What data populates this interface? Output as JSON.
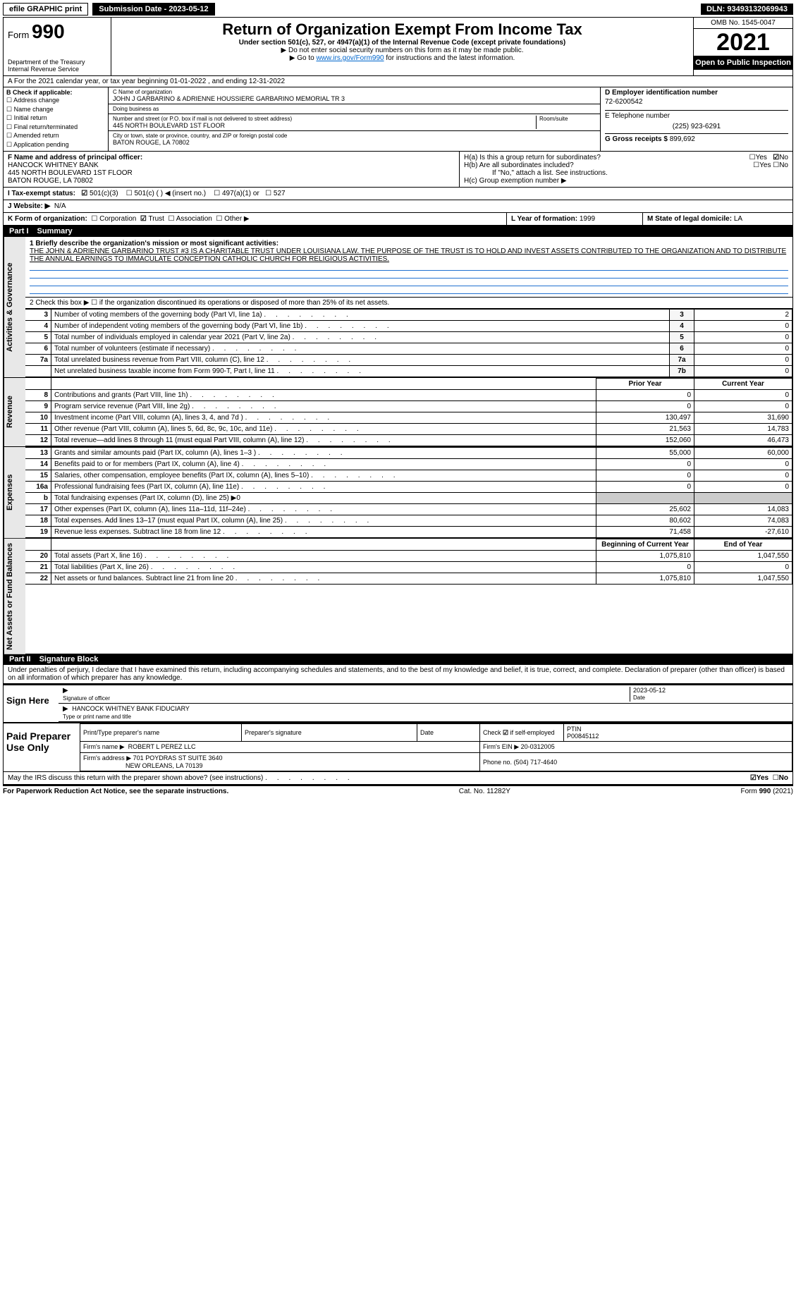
{
  "topbar": {
    "efile": "efile GRAPHIC print",
    "submission_label": "Submission Date - 2023-05-12",
    "dln": "DLN: 93493132069943"
  },
  "header": {
    "form_prefix": "Form",
    "form_no": "990",
    "dept": "Department of the Treasury",
    "irs": "Internal Revenue Service",
    "title": "Return of Organization Exempt From Income Tax",
    "sub1": "Under section 501(c), 527, or 4947(a)(1) of the Internal Revenue Code (except private foundations)",
    "sub2": "▶ Do not enter social security numbers on this form as it may be made public.",
    "sub3_pre": "▶ Go to ",
    "sub3_link": "www.irs.gov/Form990",
    "sub3_post": " for instructions and the latest information.",
    "omb": "OMB No. 1545-0047",
    "year": "2021",
    "open": "Open to Public Inspection"
  },
  "rowA": "A For the 2021 calendar year, or tax year beginning 01-01-2022     , and ending 12-31-2022",
  "colB": {
    "hdr": "B Check if applicable:",
    "items": [
      "Address change",
      "Name change",
      "Initial return",
      "Final return/terminated",
      "Amended return",
      "Application pending"
    ]
  },
  "colC": {
    "name_lbl": "C Name of organization",
    "name": "JOHN J GARBARINO & ADRIENNE HOUSSIERE GARBARINO MEMORIAL TR 3",
    "dba_lbl": "Doing business as",
    "addr_lbl": "Number and street (or P.O. box if mail is not delivered to street address)",
    "room_lbl": "Room/suite",
    "addr": "445 NORTH BOULEVARD 1ST FLOOR",
    "city_lbl": "City or town, state or province, country, and ZIP or foreign postal code",
    "city": "BATON ROUGE, LA  70802"
  },
  "colD": {
    "ein_lbl": "D Employer identification number",
    "ein": "72-6200542",
    "tel_lbl": "E Telephone number",
    "tel": "(225) 923-6291",
    "gross_lbl": "G Gross receipts $",
    "gross": "899,692"
  },
  "rowF": {
    "lbl": "F  Name and address of principal officer:",
    "l1": "HANCOCK WHITNEY BANK",
    "l2": "445 NORTH BOULEVARD 1ST FLOOR",
    "l3": "BATON ROUGE, LA  70802"
  },
  "rowH": {
    "a": "H(a)  Is this a group return for subordinates?",
    "a_yes": "Yes",
    "a_no": "No",
    "b": "H(b)  Are all subordinates included?",
    "b_note": "If \"No,\" attach a list. See instructions.",
    "c": "H(c)  Group exemption number ▶"
  },
  "rowI": {
    "lbl": "I     Tax-exempt status:",
    "o1": "501(c)(3)",
    "o2": "501(c) (   ) ◀ (insert no.)",
    "o3": "497(a)(1) or",
    "o4": "527"
  },
  "rowJ": {
    "lbl": "J    Website: ▶",
    "val": "N/A"
  },
  "rowK": {
    "lbl": "K Form of organization:",
    "o": [
      "Corporation",
      "Trust",
      "Association",
      "Other ▶"
    ]
  },
  "rowL": {
    "lbl": "L Year of formation:",
    "val": "1999"
  },
  "rowM": {
    "lbl": "M State of legal domicile:",
    "val": "LA"
  },
  "part1": {
    "no": "Part I",
    "title": "Summary",
    "q1_lbl": "1  Briefly describe the organization's mission or most significant activities:",
    "q1_txt": "THE JOHN & ADRIENNE GARBARINO TRUST #3 IS A CHARITABLE TRUST UNDER LOUISIANA LAW. THE PURPOSE OF THE TRUST IS TO HOLD AND INVEST ASSETS CONTRIBUTED TO THE ORGANIZATION AND TO DISTRIBUTE THE ANNUAL EARNINGS TO IMMACULATE CONCEPTION CATHOLIC CHURCH FOR RELIGIOUS ACTIVITIES.",
    "q2": "2   Check this box ▶ ☐  if the organization discontinued its operations or disposed of more than 25% of its net assets.",
    "gov_rows": [
      {
        "n": "3",
        "d": "Number of voting members of the governing body (Part VI, line 1a)",
        "box": "3",
        "v": "2"
      },
      {
        "n": "4",
        "d": "Number of independent voting members of the governing body (Part VI, line 1b)",
        "box": "4",
        "v": "0"
      },
      {
        "n": "5",
        "d": "Total number of individuals employed in calendar year 2021 (Part V, line 2a)",
        "box": "5",
        "v": "0"
      },
      {
        "n": "6",
        "d": "Total number of volunteers (estimate if necessary)",
        "box": "6",
        "v": "0"
      },
      {
        "n": "7a",
        "d": "Total unrelated business revenue from Part VIII, column (C), line 12",
        "box": "7a",
        "v": "0"
      },
      {
        "n": "",
        "d": "Net unrelated business taxable income from Form 990-T, Part I, line 11",
        "box": "7b",
        "v": "0"
      }
    ],
    "col_prior": "Prior Year",
    "col_curr": "Current Year",
    "rev_rows": [
      {
        "n": "8",
        "d": "Contributions and grants (Part VIII, line 1h)",
        "p": "0",
        "c": "0"
      },
      {
        "n": "9",
        "d": "Program service revenue (Part VIII, line 2g)",
        "p": "0",
        "c": "0"
      },
      {
        "n": "10",
        "d": "Investment income (Part VIII, column (A), lines 3, 4, and 7d )",
        "p": "130,497",
        "c": "31,690"
      },
      {
        "n": "11",
        "d": "Other revenue (Part VIII, column (A), lines 5, 6d, 8c, 9c, 10c, and 11e)",
        "p": "21,563",
        "c": "14,783"
      },
      {
        "n": "12",
        "d": "Total revenue—add lines 8 through 11 (must equal Part VIII, column (A), line 12)",
        "p": "152,060",
        "c": "46,473"
      }
    ],
    "exp_rows": [
      {
        "n": "13",
        "d": "Grants and similar amounts paid (Part IX, column (A), lines 1–3 )",
        "p": "55,000",
        "c": "60,000"
      },
      {
        "n": "14",
        "d": "Benefits paid to or for members (Part IX, column (A), line 4)",
        "p": "0",
        "c": "0"
      },
      {
        "n": "15",
        "d": "Salaries, other compensation, employee benefits (Part IX, column (A), lines 5–10)",
        "p": "0",
        "c": "0"
      },
      {
        "n": "16a",
        "d": "Professional fundraising fees (Part IX, column (A), line 11e)",
        "p": "0",
        "c": "0"
      },
      {
        "n": "b",
        "d": "Total fundraising expenses (Part IX, column (D), line 25) ▶0",
        "p": "",
        "c": ""
      },
      {
        "n": "17",
        "d": "Other expenses (Part IX, column (A), lines 11a–11d, 11f–24e)",
        "p": "25,602",
        "c": "14,083"
      },
      {
        "n": "18",
        "d": "Total expenses. Add lines 13–17 (must equal Part IX, column (A), line 25)",
        "p": "80,602",
        "c": "74,083"
      },
      {
        "n": "19",
        "d": "Revenue less expenses. Subtract line 18 from line 12",
        "p": "71,458",
        "c": "-27,610"
      }
    ],
    "col_boy": "Beginning of Current Year",
    "col_eoy": "End of Year",
    "net_rows": [
      {
        "n": "20",
        "d": "Total assets (Part X, line 16)",
        "p": "1,075,810",
        "c": "1,047,550"
      },
      {
        "n": "21",
        "d": "Total liabilities (Part X, line 26)",
        "p": "0",
        "c": "0"
      },
      {
        "n": "22",
        "d": "Net assets or fund balances. Subtract line 21 from line 20",
        "p": "1,075,810",
        "c": "1,047,550"
      }
    ],
    "tabs": [
      "Activities & Governance",
      "Revenue",
      "Expenses",
      "Net Assets or Fund Balances"
    ]
  },
  "part2": {
    "no": "Part II",
    "title": "Signature Block",
    "decl": "Under penalties of perjury, I declare that I have examined this return, including accompanying schedules and statements, and to the best of my knowledge and belief, it is true, correct, and complete. Declaration of preparer (other than officer) is based on all information of which preparer has any knowledge."
  },
  "sign": {
    "lbl": "Sign Here",
    "sig_lbl": "Signature of officer",
    "date": "2023-05-12",
    "date_lbl": "Date",
    "name": "HANCOCK WHITNEY BANK  FIDUCIARY",
    "name_lbl": "Type or print name and title"
  },
  "prep": {
    "lbl": "Paid Preparer Use Only",
    "h1": "Print/Type preparer's name",
    "h2": "Preparer's signature",
    "h3": "Date",
    "h4_pre": "Check",
    "h4_post": "if self-employed",
    "ptin_lbl": "PTIN",
    "ptin": "P00845112",
    "firm_lbl": "Firm's name    ▶",
    "firm": "ROBERT L PEREZ LLC",
    "ein_lbl": "Firm's EIN ▶",
    "ein": "20-0312005",
    "addr_lbl": "Firm's address ▶",
    "addr1": "701 POYDRAS ST SUITE 3640",
    "addr2": "NEW ORLEANS, LA  70139",
    "tel_lbl": "Phone no.",
    "tel": "(504) 717-4640"
  },
  "discuss": {
    "q": "May the IRS discuss this return with the preparer shown above? (see instructions)",
    "yes": "Yes",
    "no": "No"
  },
  "footer": {
    "l": "For Paperwork Reduction Act Notice, see the separate instructions.",
    "m": "Cat. No. 11282Y",
    "r": "Form 990 (2021)"
  },
  "colors": {
    "link": "#0066cc",
    "rule": "#2070d0"
  }
}
